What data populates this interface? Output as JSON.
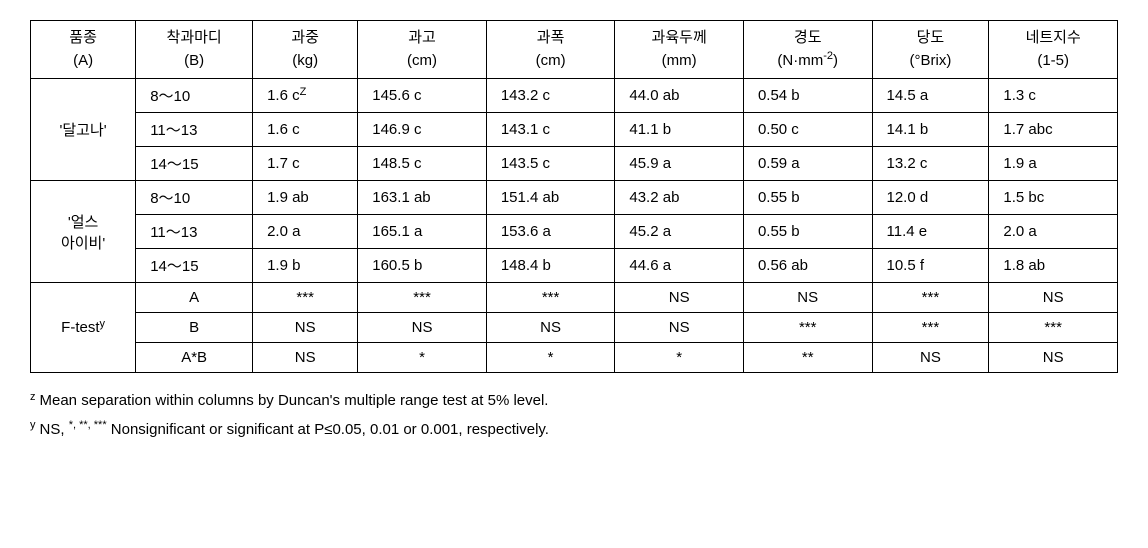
{
  "headers": [
    {
      "line1": "품종",
      "line2": "(A)"
    },
    {
      "line1": "착과마디",
      "line2": "(B)"
    },
    {
      "line1": "과중",
      "line2": "(kg)"
    },
    {
      "line1": "과고",
      "line2": "(cm)"
    },
    {
      "line1": "과폭",
      "line2": "(cm)"
    },
    {
      "line1": "과육두께",
      "line2": "(mm)"
    },
    {
      "line1": "경도",
      "line2_html": "(N·mm<span class=\"sup\">-2</span>)"
    },
    {
      "line1": "당도",
      "line2": "(°Brix)"
    },
    {
      "line1": "네트지수",
      "line2": "(1-5)"
    }
  ],
  "group1": {
    "label": "'달고나'",
    "rows": [
      [
        "8～10",
        "1.6 c",
        "145.6 c",
        "143.2 c",
        "44.0 ab",
        "0.54 b",
        "14.5 a",
        "1.3 c"
      ],
      [
        "11～13",
        "1.6 c",
        "146.9 c",
        "143.1 c",
        "41.1 b",
        "0.50 c",
        "14.1 b",
        "1.7 abc"
      ],
      [
        "14～15",
        "1.7 c",
        "148.5 c",
        "143.5 c",
        "45.9 a",
        "0.59 a",
        "13.2 c",
        "1.9 a"
      ]
    ],
    "first_value_sup": "Z"
  },
  "group2": {
    "label_line1": "'얼스",
    "label_line2": "아이비'",
    "rows": [
      [
        "8～10",
        "1.9 ab",
        "163.1 ab",
        "151.4 ab",
        "43.2 ab",
        "0.55 b",
        "12.0 d",
        "1.5 bc"
      ],
      [
        "11～13",
        "2.0 a",
        "165.1 a",
        "153.6 a",
        "45.2 a",
        "0.55 b",
        "11.4 e",
        "2.0 a"
      ],
      [
        "14～15",
        "1.9 b",
        "160.5 b",
        "148.4 b",
        "44.6 a",
        "0.56 ab",
        "10.5 f",
        "1.8 ab"
      ]
    ]
  },
  "ftest": {
    "label": "F-test",
    "label_sup": "y",
    "rows": [
      [
        "A",
        "***",
        "***",
        "***",
        "NS",
        "NS",
        "***",
        "NS"
      ],
      [
        "B",
        "NS",
        "NS",
        "NS",
        "NS",
        "***",
        "***",
        "***"
      ],
      [
        "A*B",
        "NS",
        "*",
        "*",
        "*",
        "**",
        "NS",
        "NS"
      ]
    ]
  },
  "footnotes": {
    "z": "Mean separation within columns by Duncan's multiple range test at 5% level.",
    "y_prefix": "NS, ",
    "y_marks": "*, **, ***",
    "y_rest": " Nonsignificant or significant at P≤0.05, 0.01 or 0.001, respectively."
  }
}
